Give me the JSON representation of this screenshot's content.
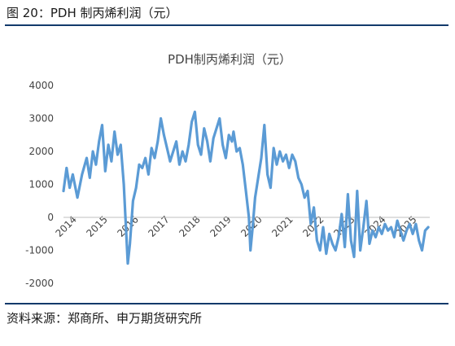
{
  "figure_caption": "图 20：PDH 制丙烯利润（元）",
  "source_note": "资料来源：郑商所、申万期货研究所",
  "chart_data": {
    "type": "line",
    "title": "PDH制丙烯利润（元）",
    "xlabel": "",
    "ylabel": "",
    "x_ticks": [
      "2014",
      "2015",
      "2016",
      "2017",
      "2018",
      "2019",
      "2020",
      "2021",
      "2022",
      "2023",
      "2024",
      "2025"
    ],
    "y_ticks": [
      4000,
      3000,
      2000,
      1000,
      0,
      -1000,
      -2000
    ],
    "ylim": [
      -2000,
      4000
    ],
    "xlim": [
      2014.0,
      2025.85
    ],
    "grid": false,
    "legend": "none",
    "line_color": "#5b9bd5",
    "series": [
      {
        "x": [
          2014.0,
          2014.1,
          2014.2,
          2014.3,
          2014.45,
          2014.6,
          2014.75,
          2014.85,
          2014.95,
          2015.05,
          2015.15,
          2015.25,
          2015.35,
          2015.45,
          2015.55,
          2015.65,
          2015.75,
          2015.85,
          2015.95,
          2016.0,
          2016.08,
          2016.15,
          2016.25,
          2016.35,
          2016.45,
          2016.55,
          2016.65,
          2016.75,
          2016.85,
          2016.95,
          2017.05,
          2017.15,
          2017.25,
          2017.35,
          2017.45,
          2017.55,
          2017.65,
          2017.75,
          2017.85,
          2017.95,
          2018.05,
          2018.15,
          2018.25,
          2018.35,
          2018.45,
          2018.55,
          2018.65,
          2018.75,
          2018.85,
          2018.95,
          2019.05,
          2019.15,
          2019.25,
          2019.35,
          2019.45,
          2019.5,
          2019.6,
          2019.7,
          2019.8,
          2019.9,
          2020.0,
          2020.05,
          2020.12,
          2020.2,
          2020.3,
          2020.4,
          2020.5,
          2020.6,
          2020.7,
          2020.8,
          2020.9,
          2021.0,
          2021.1,
          2021.2,
          2021.3,
          2021.4,
          2021.5,
          2021.6,
          2021.7,
          2021.8,
          2021.9,
          2022.0,
          2022.1,
          2022.2,
          2022.3,
          2022.4,
          2022.5,
          2022.6,
          2022.7,
          2022.8,
          2022.9,
          2023.0,
          2023.1,
          2023.2,
          2023.3,
          2023.4,
          2023.5,
          2023.6,
          2023.7,
          2023.8,
          2023.9,
          2024.0,
          2024.1,
          2024.2,
          2024.3,
          2024.4,
          2024.5,
          2024.6,
          2024.7,
          2024.8,
          2024.9,
          2025.0,
          2025.1,
          2025.2,
          2025.3,
          2025.4,
          2025.5,
          2025.6,
          2025.7,
          2025.8
        ],
        "y": [
          800,
          1500,
          900,
          1300,
          600,
          1300,
          1800,
          1200,
          2000,
          1600,
          2300,
          2800,
          1400,
          2200,
          1700,
          2600,
          1900,
          2200,
          1000,
          100,
          -1400,
          -800,
          500,
          900,
          1600,
          1500,
          1800,
          1300,
          2100,
          1800,
          2300,
          3000,
          2500,
          2100,
          1700,
          2000,
          2300,
          1600,
          2000,
          1700,
          2200,
          2900,
          3200,
          2200,
          1900,
          2700,
          2300,
          1700,
          2400,
          2700,
          3000,
          2200,
          1800,
          2500,
          2300,
          2600,
          2000,
          2100,
          1600,
          800,
          0,
          -1000,
          -300,
          600,
          1200,
          1800,
          2800,
          1300,
          900,
          2100,
          1600,
          2000,
          1700,
          1900,
          1500,
          1900,
          1700,
          1200,
          1000,
          600,
          800,
          -200,
          300,
          -700,
          -1000,
          -300,
          -1100,
          -500,
          -800,
          -1000,
          -600,
          100,
          -900,
          700,
          -700,
          -1200,
          800,
          -1000,
          -300,
          500,
          -800,
          -400,
          -600,
          -300,
          -500,
          -200,
          -400,
          -300,
          -600,
          -100,
          -400,
          -700,
          -400,
          -200,
          -500,
          -200,
          -700,
          -1000,
          -400,
          -300
        ]
      }
    ]
  }
}
